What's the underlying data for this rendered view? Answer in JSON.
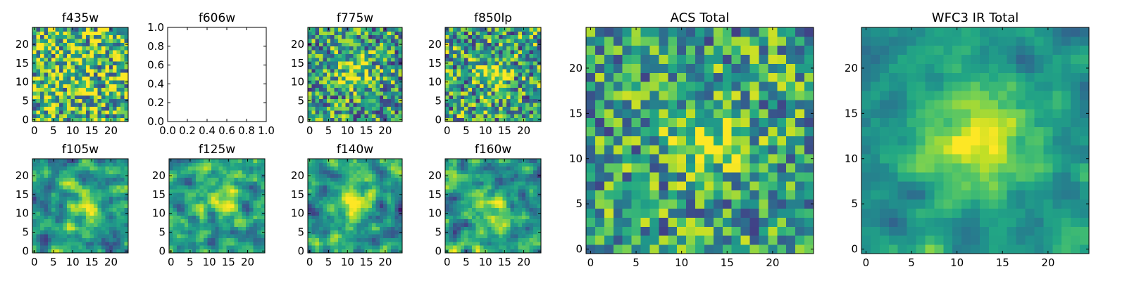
{
  "chart_data": [
    {
      "type": "heatmap",
      "title": "f435w",
      "grid": false,
      "xlim": [
        -0.5,
        24.5
      ],
      "ylim": [
        -0.5,
        24.5
      ],
      "xticks": [
        "0",
        "5",
        "10",
        "15",
        "20"
      ],
      "yticks": [
        "0",
        "5",
        "10",
        "15",
        "20"
      ],
      "colormap": "viridis",
      "empty": false
    },
    {
      "type": "heatmap",
      "title": "f606w",
      "grid": false,
      "xlim": [
        0,
        1
      ],
      "ylim": [
        0,
        1
      ],
      "xticks": [
        "0.0",
        "0.2",
        "0.4",
        "0.6",
        "0.8",
        "1.0"
      ],
      "yticks": [
        "0.0",
        "0.2",
        "0.4",
        "0.6",
        "0.8",
        "1.0"
      ],
      "colormap": "viridis",
      "empty": true
    },
    {
      "type": "heatmap",
      "title": "f775w",
      "grid": false,
      "xlim": [
        -0.5,
        24.5
      ],
      "ylim": [
        -0.5,
        24.5
      ],
      "xticks": [
        "0",
        "5",
        "10",
        "15",
        "20"
      ],
      "yticks": [
        "0",
        "5",
        "10",
        "15",
        "20"
      ],
      "colormap": "viridis",
      "empty": false
    },
    {
      "type": "heatmap",
      "title": "f850lp",
      "grid": false,
      "xlim": [
        -0.5,
        24.5
      ],
      "ylim": [
        -0.5,
        24.5
      ],
      "xticks": [
        "0",
        "5",
        "10",
        "15",
        "20"
      ],
      "yticks": [
        "0",
        "5",
        "10",
        "15",
        "20"
      ],
      "colormap": "viridis",
      "empty": false
    },
    {
      "type": "heatmap",
      "title": "f105w",
      "grid": false,
      "xlim": [
        -0.5,
        24.5
      ],
      "ylim": [
        -0.5,
        24.5
      ],
      "xticks": [
        "0",
        "5",
        "10",
        "15",
        "20"
      ],
      "yticks": [
        "0",
        "5",
        "10",
        "15",
        "20"
      ],
      "colormap": "viridis",
      "empty": false
    },
    {
      "type": "heatmap",
      "title": "f125w",
      "grid": false,
      "xlim": [
        -0.5,
        24.5
      ],
      "ylim": [
        -0.5,
        24.5
      ],
      "xticks": [
        "0",
        "5",
        "10",
        "15",
        "20"
      ],
      "yticks": [
        "0",
        "5",
        "10",
        "15",
        "20"
      ],
      "colormap": "viridis",
      "empty": false
    },
    {
      "type": "heatmap",
      "title": "f140w",
      "grid": false,
      "xlim": [
        -0.5,
        24.5
      ],
      "ylim": [
        -0.5,
        24.5
      ],
      "xticks": [
        "0",
        "5",
        "10",
        "15",
        "20"
      ],
      "yticks": [
        "0",
        "5",
        "10",
        "15",
        "20"
      ],
      "colormap": "viridis",
      "empty": false
    },
    {
      "type": "heatmap",
      "title": "f160w",
      "grid": false,
      "xlim": [
        -0.5,
        24.5
      ],
      "ylim": [
        -0.5,
        24.5
      ],
      "xticks": [
        "0",
        "5",
        "10",
        "15",
        "20"
      ],
      "yticks": [
        "0",
        "5",
        "10",
        "15",
        "20"
      ],
      "colormap": "viridis",
      "empty": false
    },
    {
      "type": "heatmap",
      "title": "ACS Total",
      "grid": false,
      "xlim": [
        -0.5,
        24.5
      ],
      "ylim": [
        -0.5,
        24.5
      ],
      "xticks": [
        "0",
        "5",
        "10",
        "15",
        "20"
      ],
      "yticks": [
        "0",
        "5",
        "10",
        "15",
        "20"
      ],
      "colormap": "viridis",
      "empty": false
    },
    {
      "type": "heatmap",
      "title": "WFC3 IR Total",
      "grid": false,
      "xlim": [
        -0.5,
        24.5
      ],
      "ylim": [
        -0.5,
        24.5
      ],
      "xticks": [
        "0",
        "5",
        "10",
        "15",
        "20"
      ],
      "yticks": [
        "0",
        "5",
        "10",
        "15",
        "20"
      ],
      "colormap": "viridis",
      "empty": false
    }
  ]
}
